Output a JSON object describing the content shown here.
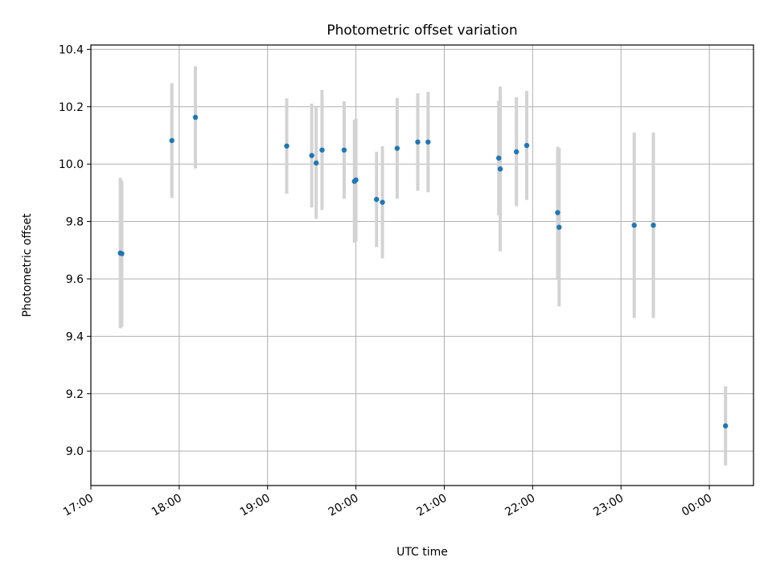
{
  "chart_data": {
    "type": "scatter",
    "title": "Photometric offset variation",
    "xlabel": "UTC time",
    "ylabel": "Photometric offset",
    "x_tick_labels": [
      "17:00",
      "18:00",
      "19:00",
      "20:00",
      "21:00",
      "22:00",
      "23:00",
      "00:00"
    ],
    "x_range_hours": [
      17.0,
      24.5
    ],
    "ylim": [
      8.88,
      10.415
    ],
    "y_ticks": [
      9.0,
      9.2,
      9.4,
      9.6,
      9.8,
      10.0,
      10.2,
      10.4
    ],
    "y_tick_labels": [
      "9.0",
      "9.2",
      "9.4",
      "9.6",
      "9.8",
      "10.0",
      "10.2",
      "10.4"
    ],
    "grid": true,
    "colors": {
      "points": "#1f77b4",
      "errorbars": "#d3d3d3",
      "grid": "#b0b0b0"
    },
    "series": [
      {
        "x": [
          "17:20",
          "17:21",
          "17:55",
          "18:11",
          "19:13",
          "19:30",
          "19:33",
          "19:37",
          "19:52",
          "19:59",
          "20:00",
          "20:14",
          "20:18",
          "20:28",
          "20:42",
          "20:49",
          "21:37",
          "21:38",
          "21:49",
          "21:56",
          "22:17",
          "22:18",
          "23:09",
          "23:22",
          "00:11"
        ],
        "y": [
          9.69,
          9.688,
          10.082,
          10.163,
          10.063,
          10.03,
          10.004,
          10.049,
          10.049,
          9.94,
          9.945,
          9.877,
          9.867,
          10.055,
          10.077,
          10.077,
          10.021,
          9.983,
          10.043,
          10.065,
          9.831,
          9.78,
          9.787,
          9.787,
          9.088
        ],
        "yerr": [
          0.262,
          0.255,
          0.2,
          0.178,
          0.166,
          0.181,
          0.195,
          0.209,
          0.17,
          0.214,
          0.214,
          0.166,
          0.195,
          0.175,
          0.17,
          0.175,
          0.2,
          0.287,
          0.19,
          0.19,
          0.23,
          0.276,
          0.323,
          0.323,
          0.138
        ]
      }
    ]
  }
}
